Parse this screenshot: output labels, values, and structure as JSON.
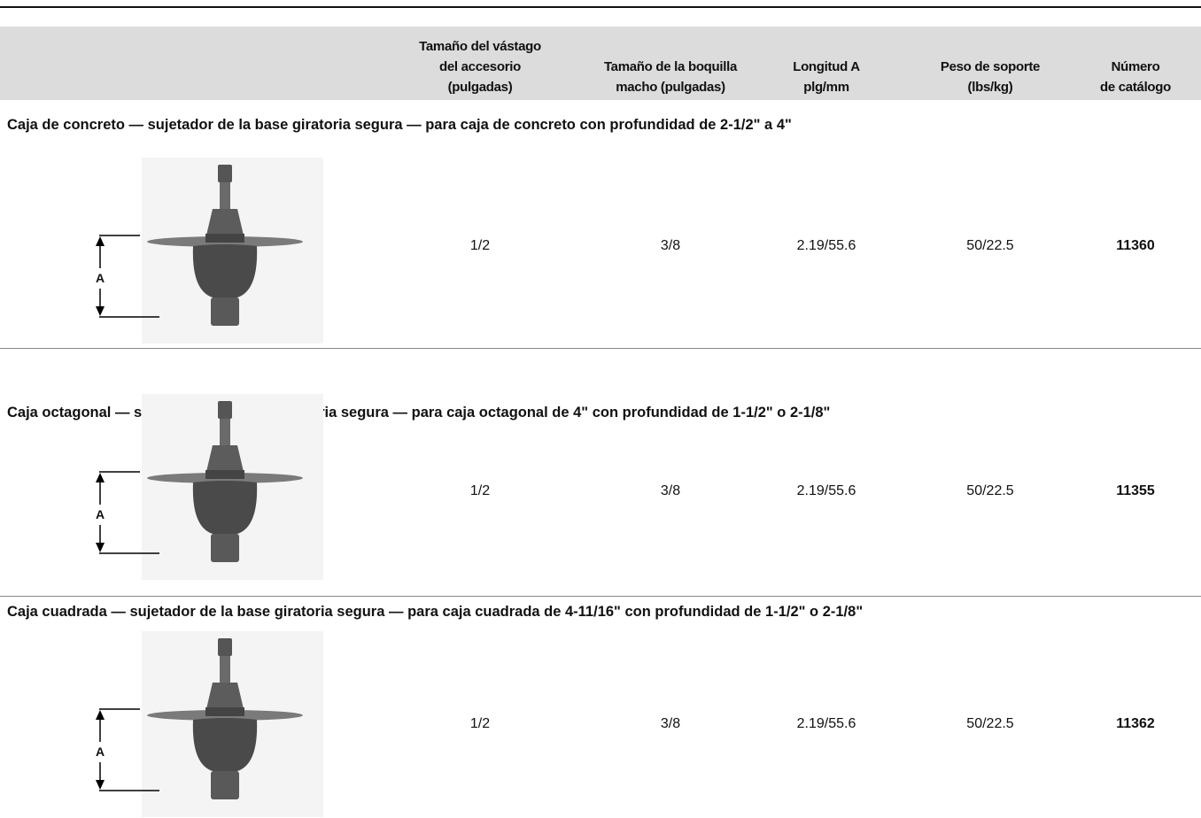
{
  "header": {
    "columns": [
      {
        "lines": [
          "Tamaño del vástago",
          "del accesorio",
          "(pulgadas)"
        ]
      },
      {
        "lines": [
          "Tamaño de la boquilla",
          "macho (pulgadas)"
        ]
      },
      {
        "lines": [
          "Longitud A",
          "plg/mm"
        ]
      },
      {
        "lines": [
          "Peso de soporte",
          "(lbs/kg)"
        ]
      },
      {
        "lines": [
          "Número",
          "de catálogo"
        ]
      }
    ]
  },
  "sections": [
    {
      "title": "Caja de concreto — sujetador de la base giratoria segura — para caja de concreto con profundidad de 2-1/2\" a 4\"",
      "dimension_label": "A",
      "row": [
        "1/2",
        "3/8",
        "2.19/55.6",
        "50/22.5",
        "11360"
      ]
    },
    {
      "title": "Caja octagonal — sujetador de la base giratoria segura — para caja octagonal de 4\" con profundidad de 1-1/2\" o 2-1/8\"",
      "dimension_label": "A",
      "row": [
        "1/2",
        "3/8",
        "2.19/55.6",
        "50/22.5",
        "11355"
      ]
    },
    {
      "title": "Caja cuadrada — sujetador de la base giratoria segura — para caja cuadrada de 4-11/16\" con profundidad de 1-1/2\" o 2-1/8\"",
      "dimension_label": "A",
      "row": [
        "1/2",
        "3/8",
        "2.19/55.6",
        "50/22.5",
        "11362"
      ]
    }
  ]
}
